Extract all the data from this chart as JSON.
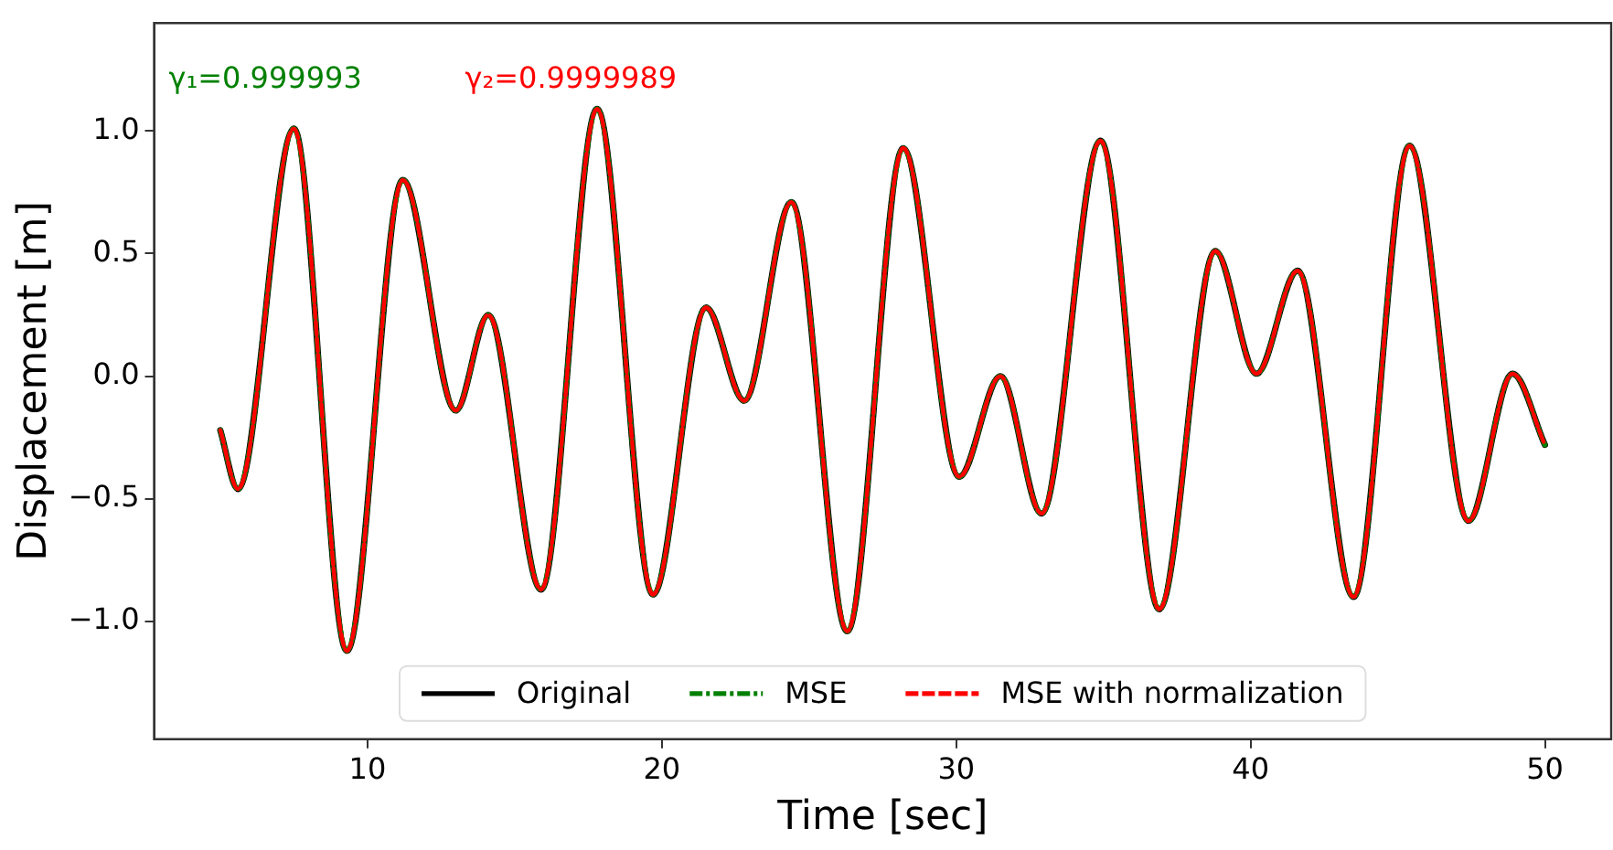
{
  "chart_data": {
    "type": "line",
    "xlabel": "Time [sec]",
    "ylabel": "Displacement [m]",
    "x": [
      5.0,
      5.6,
      7.5,
      9.3,
      11.2,
      13.0,
      14.1,
      15.9,
      17.8,
      19.7,
      21.5,
      22.8,
      24.4,
      26.3,
      28.2,
      30.1,
      31.5,
      32.9,
      34.9,
      36.9,
      38.8,
      40.2,
      41.6,
      43.5,
      45.4,
      47.4,
      48.9,
      50.0
    ],
    "series": [
      {
        "name": "Original",
        "color": "#000000",
        "line_style": "solid",
        "values": [
          -0.22,
          -0.46,
          1.01,
          -1.12,
          0.8,
          -0.14,
          0.25,
          -0.87,
          1.09,
          -0.89,
          0.28,
          -0.1,
          0.71,
          -1.04,
          0.93,
          -0.41,
          0.0,
          -0.56,
          0.96,
          -0.95,
          0.51,
          0.01,
          0.43,
          -0.9,
          0.94,
          -0.59,
          0.01,
          -0.28
        ]
      },
      {
        "name": "MSE",
        "color": "#008000",
        "line_style": "dashdot",
        "values": [
          -0.22,
          -0.46,
          1.01,
          -1.12,
          0.8,
          -0.14,
          0.25,
          -0.87,
          1.09,
          -0.89,
          0.28,
          -0.1,
          0.71,
          -1.04,
          0.93,
          -0.41,
          0.0,
          -0.56,
          0.96,
          -0.95,
          0.51,
          0.01,
          0.43,
          -0.9,
          0.94,
          -0.59,
          0.01,
          -0.28
        ]
      },
      {
        "name": "MSE with normalization",
        "color": "#ff0000",
        "line_style": "dashed",
        "values": [
          -0.22,
          -0.46,
          1.01,
          -1.12,
          0.8,
          -0.14,
          0.25,
          -0.87,
          1.09,
          -0.89,
          0.28,
          -0.1,
          0.71,
          -1.04,
          0.93,
          -0.41,
          0.0,
          -0.56,
          0.96,
          -0.95,
          0.51,
          0.01,
          0.43,
          -0.9,
          0.94,
          -0.59,
          0.01,
          -0.28
        ]
      }
    ],
    "annotations": [
      "γ₁=0.999993",
      "γ₂=0.9999989"
    ],
    "xlim": [
      2.75,
      52.25
    ],
    "xticks": [
      10,
      20,
      30,
      40,
      50
    ],
    "ylim": [
      -1.48,
      1.44
    ],
    "yticks": [
      {
        "value": -1.0,
        "label": "−1.0"
      },
      {
        "value": -0.5,
        "label": "−0.5"
      },
      {
        "value": 0,
        "label": "0.0"
      },
      {
        "value": 0.5,
        "label": "0.5"
      },
      {
        "value": 1.0,
        "label": "1.0"
      }
    ],
    "grid": false,
    "legend": "bottom",
    "marker": "none"
  }
}
